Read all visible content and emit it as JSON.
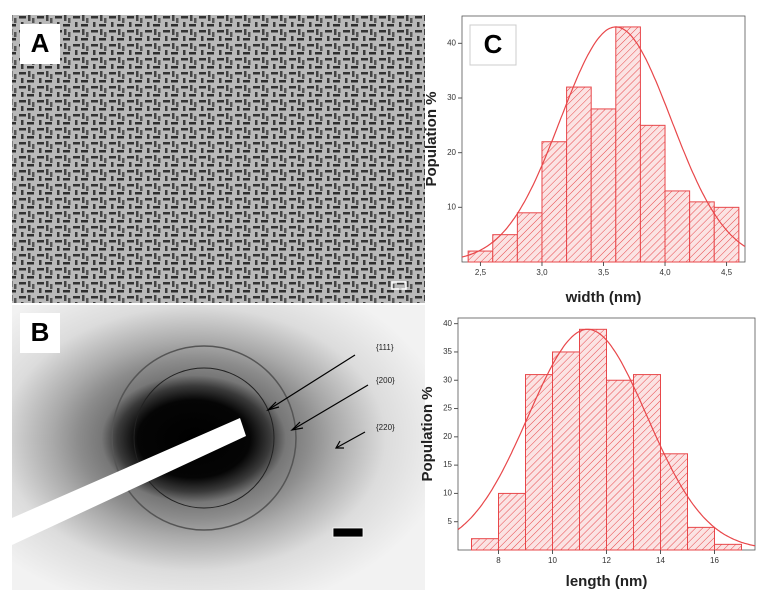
{
  "panels": {
    "a": "A",
    "b": "B",
    "c": "C"
  },
  "diffraction": {
    "rings": [
      "{111}",
      "{200}",
      "{220}"
    ]
  },
  "chart_data": [
    {
      "type": "histogram",
      "xlabel": "width (nm)",
      "ylabel": "Population %",
      "color": "#e8474a",
      "bins": [
        2.4,
        2.6,
        2.8,
        3.0,
        3.2,
        3.4,
        3.6,
        3.8,
        4.0,
        4.2,
        4.4,
        4.6
      ],
      "values": [
        2,
        5,
        9,
        22,
        32,
        28,
        43,
        25,
        13,
        11,
        10
      ],
      "fit": {
        "center": 3.6,
        "sigma": 0.45,
        "peak": 43
      },
      "xlim": [
        2.35,
        4.65
      ],
      "ylim": [
        0,
        45
      ],
      "xticks": [
        {
          "value": 2.5,
          "label": "2,5"
        },
        {
          "value": 3.0,
          "label": "3,0"
        },
        {
          "value": 3.5,
          "label": "3,5"
        },
        {
          "value": 4.0,
          "label": "4,0"
        },
        {
          "value": 4.5,
          "label": "4,5"
        }
      ],
      "yticks": [
        10,
        20,
        30,
        40
      ]
    },
    {
      "type": "histogram",
      "xlabel": "length (nm)",
      "ylabel": "Population %",
      "color": "#e8474a",
      "bins": [
        7,
        8,
        9,
        10,
        11,
        12,
        13,
        14,
        15,
        16,
        17
      ],
      "values": [
        2,
        10,
        31,
        35,
        39,
        30,
        31,
        17,
        4,
        1
      ],
      "fit": {
        "center": 11.3,
        "sigma": 2.2,
        "peak": 39
      },
      "xlim": [
        6.5,
        17.5
      ],
      "ylim": [
        0,
        41
      ],
      "xticks": [
        8,
        10,
        12,
        14,
        16
      ],
      "yticks": [
        5,
        10,
        15,
        20,
        25,
        30,
        35,
        40
      ]
    }
  ]
}
